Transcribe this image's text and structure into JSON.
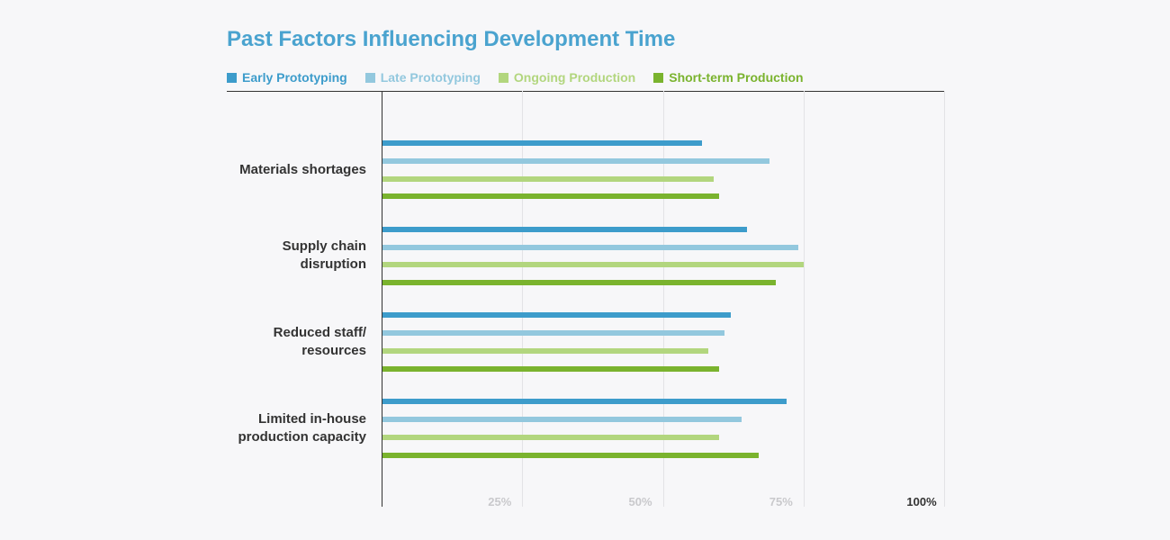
{
  "chart_data": {
    "type": "bar",
    "orientation": "horizontal",
    "title": "Past Factors Influencing Development Time",
    "categories": [
      [
        "Materials shortages"
      ],
      [
        "Supply chain",
        "disruption"
      ],
      [
        "Reduced staff/",
        "resources"
      ],
      [
        "Limited in-house",
        "production capacity"
      ]
    ],
    "series": [
      {
        "name": "Early Prototyping",
        "color": "#3d9ccb",
        "values": [
          57,
          65,
          62,
          72
        ]
      },
      {
        "name": "Late Prototyping",
        "color": "#93c8de",
        "values": [
          69,
          74,
          61,
          64
        ]
      },
      {
        "name": "Ongoing Production",
        "color": "#b2d67e",
        "values": [
          59,
          75,
          58,
          60
        ]
      },
      {
        "name": "Short-term Production",
        "color": "#7ab32e",
        "values": [
          60,
          70,
          60,
          67
        ]
      }
    ],
    "x_ticks": [
      {
        "label": "25%",
        "value": 25,
        "color": "#c9c9cc"
      },
      {
        "label": "50%",
        "value": 50,
        "color": "#c9c9cc"
      },
      {
        "label": "75%",
        "value": 75,
        "color": "#c9c9cc"
      },
      {
        "label": "100%",
        "value": 100,
        "color": "#333333"
      }
    ],
    "xlim": [
      0,
      100
    ],
    "grid": true,
    "legend_position": "top-left"
  }
}
